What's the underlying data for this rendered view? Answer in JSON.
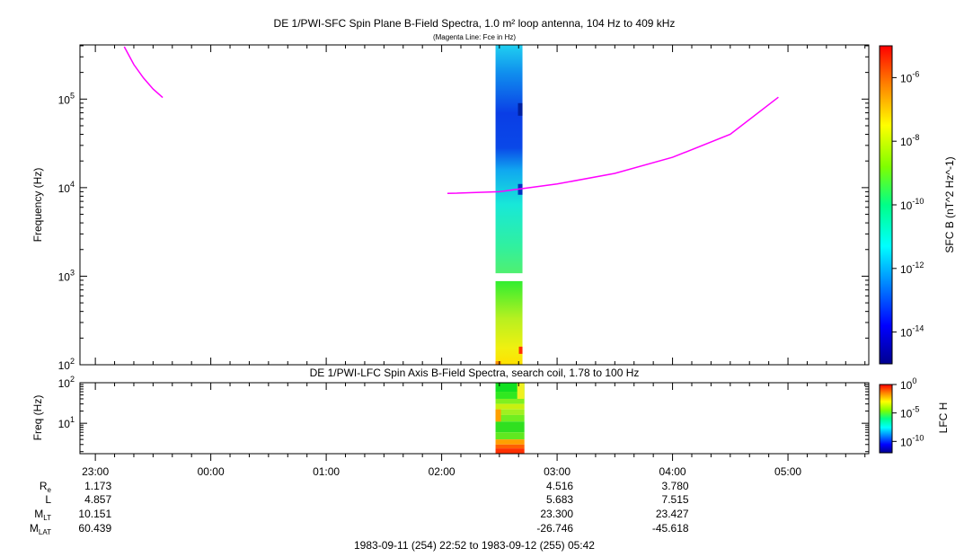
{
  "title": "DE 1/PWI-SFC  Spin Plane B-Field Spectra, 1.0 m² loop antenna, 104 Hz to 409 kHz",
  "subtitle": "(Magenta Line: Fce in Hz)",
  "panel2_title": "DE 1/PWI-LFC  Spin Axis B-Field Spectra, search coil, 1.78 to 100 Hz",
  "date_range": "1983-09-11 (254) 22:52 to 1983-09-12 (255) 05:42",
  "colors": {
    "fce_line": "#ff00ff",
    "background": "#ffffff"
  },
  "chart_data": [
    {
      "type": "heatmap",
      "name": "SFC spectrogram",
      "ylabel": "Frequency (Hz)",
      "ylog": true,
      "ylim_hz": [
        100,
        409000
      ],
      "ytick_labels": [
        "10^2",
        "10^3",
        "10^4",
        "10^5"
      ],
      "colorbar_label": "SFC B (nT^2 Hz^-1)",
      "colorbar_ticks": [
        "10^-14",
        "10^-12",
        "10^-10",
        "10^-8",
        "10^-6"
      ],
      "colorbar_log_range": [
        -15,
        -5
      ],
      "data_time_range": [
        "02:28",
        "02:42"
      ],
      "fce_line": {
        "segment_1": {
          "time": [
            "23:15",
            "23:20",
            "23:25",
            "23:30",
            "23:35"
          ],
          "freq_hz": [
            390000,
            245000,
            173000,
            130000,
            104000
          ]
        },
        "segment_2": {
          "time": [
            "02:03",
            "02:30",
            "03:00",
            "03:30",
            "04:00",
            "04:30",
            "04:55"
          ],
          "freq_hz": [
            8600,
            9000,
            11000,
            14500,
            22000,
            40000,
            105000
          ]
        }
      }
    },
    {
      "type": "heatmap",
      "name": "LFC spectrogram",
      "ylabel": "Freq (Hz)",
      "ylog": true,
      "ylim_hz": [
        1.78,
        100
      ],
      "ytick_labels": [
        "10^1",
        "10^2"
      ],
      "colorbar_label": "LFC H",
      "colorbar_ticks": [
        "10^-10",
        "10^-5",
        "10^0"
      ],
      "colorbar_log_range": [
        -12,
        0
      ],
      "data_time_range": [
        "02:28",
        "02:43"
      ]
    }
  ],
  "time_axis": {
    "ticks": [
      "23:00",
      "00:00",
      "01:00",
      "02:00",
      "03:00",
      "04:00",
      "05:00"
    ],
    "range": [
      "1983-09-11 22:52",
      "1983-09-12 05:42"
    ]
  },
  "ephemeris": {
    "labels": [
      {
        "main": "R",
        "sub": "e"
      },
      {
        "main": "L",
        "sub": ""
      },
      {
        "main": "M",
        "sub": "LT"
      },
      {
        "main": "M",
        "sub": "LAT"
      }
    ],
    "columns": [
      {
        "time": "23:00",
        "values": [
          "1.173",
          "4.857",
          "10.151",
          "60.439"
        ]
      },
      {
        "time": "03:00",
        "values": [
          "4.516",
          "5.683",
          "23.300",
          "-26.746"
        ]
      },
      {
        "time": "04:00",
        "values": [
          "3.780",
          "7.515",
          "23.427",
          "-45.618"
        ]
      }
    ]
  }
}
